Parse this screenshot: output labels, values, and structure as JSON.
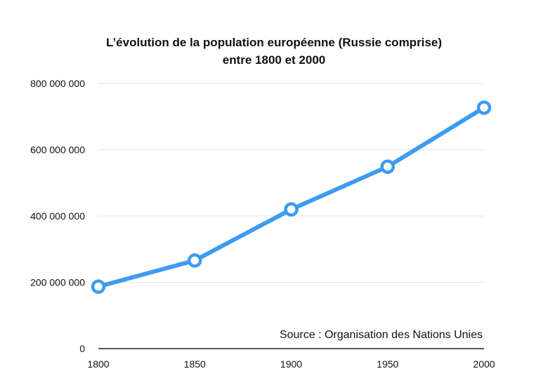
{
  "chart_data": {
    "type": "line",
    "title_line1": "L’évolution de la population européenne (Russie comprise)",
    "title_line2": "entre 1800 et 2000",
    "xlabel": "",
    "ylabel": "",
    "x": [
      1800,
      1850,
      1900,
      1950,
      2000
    ],
    "x_tick_labels": [
      "1800",
      "1850",
      "1900",
      "1950",
      "2000"
    ],
    "series": [
      {
        "values": [
          187000000,
          266000000,
          420000000,
          549000000,
          727000000
        ]
      }
    ],
    "ylim": [
      0,
      800000000
    ],
    "y_ticks": [
      0,
      200000000,
      400000000,
      600000000,
      800000000
    ],
    "y_tick_labels": [
      "0",
      "200 000 000",
      "400 000 000",
      "600 000 000",
      "800 000 000"
    ],
    "grid": "horizontal",
    "line_color": "#3d9bf2",
    "annotation": "Source : Organisation des Nations Unies"
  }
}
